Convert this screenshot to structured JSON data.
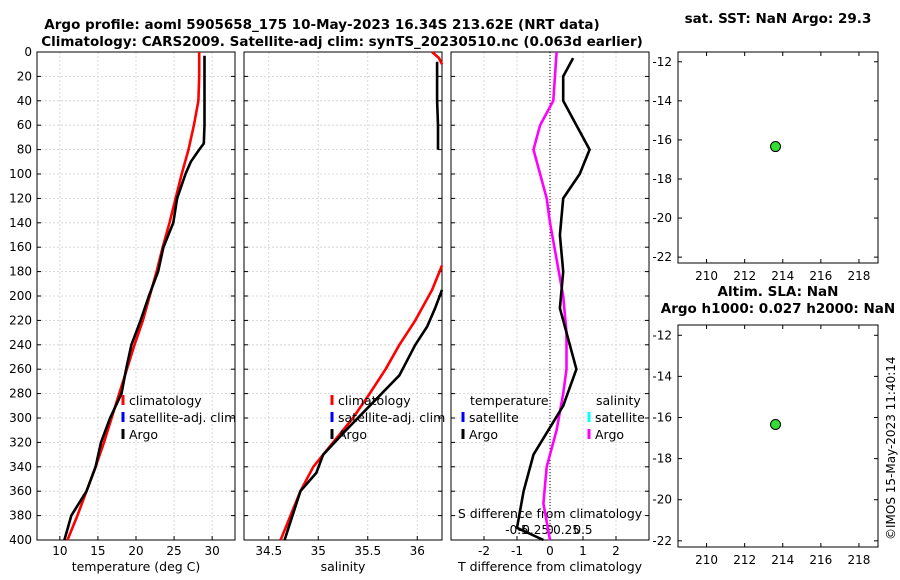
{
  "chart_data": [
    {
      "type": "line",
      "panel": "temperature",
      "title_line1": "Argo profile: aoml 5905658_175 10-May-2023 16.34S 213.62E (NRT data)",
      "title_line2": "Climatology: CARS2009. Satellite-adj clim: synTS_20230510.nc (0.063d earlier)",
      "xlabel": "temperature (deg C)",
      "xlim": [
        7,
        33
      ],
      "xticks": [
        10,
        15,
        20,
        25,
        30
      ],
      "xtick_labels": [
        "10",
        "15",
        "20",
        "25",
        "30"
      ],
      "ylim": [
        0,
        400
      ],
      "yticks": [
        0,
        20,
        40,
        60,
        80,
        100,
        120,
        140,
        160,
        180,
        200,
        220,
        240,
        260,
        280,
        300,
        320,
        340,
        360,
        380,
        400
      ],
      "ytick_labels": [
        "0",
        "20",
        "40",
        "60",
        "80",
        "100",
        "120",
        "140",
        "160",
        "180",
        "200",
        "220",
        "240",
        "260",
        "280",
        "300",
        "320",
        "340",
        "360",
        "380",
        "400"
      ],
      "legend": [
        "climatology",
        "satellite-adj. clim",
        "Argo"
      ],
      "series": [
        {
          "name": "climatology",
          "color": "#ff0000",
          "points": [
            [
              28.3,
              0
            ],
            [
              28.3,
              20
            ],
            [
              28.2,
              40
            ],
            [
              27.6,
              60
            ],
            [
              26.9,
              80
            ],
            [
              26.0,
              100
            ],
            [
              25.2,
              120
            ],
            [
              24.4,
              140
            ],
            [
              23.5,
              160
            ],
            [
              22.7,
              180
            ],
            [
              21.8,
              200
            ],
            [
              20.9,
              220
            ],
            [
              19.8,
              240
            ],
            [
              18.8,
              260
            ],
            [
              17.8,
              280
            ],
            [
              16.8,
              300
            ],
            [
              15.8,
              320
            ],
            [
              14.7,
              340
            ],
            [
              13.5,
              360
            ],
            [
              12.3,
              380
            ],
            [
              11.0,
              400
            ]
          ]
        },
        {
          "name": "Argo",
          "color": "#000000",
          "points": [
            [
              29.0,
              3
            ],
            [
              29.0,
              20
            ],
            [
              29.0,
              40
            ],
            [
              29.0,
              60
            ],
            [
              28.9,
              75
            ],
            [
              28.3,
              80
            ],
            [
              27.2,
              90
            ],
            [
              26.5,
              100
            ],
            [
              25.4,
              120
            ],
            [
              24.9,
              140
            ],
            [
              23.6,
              160
            ],
            [
              22.9,
              180
            ],
            [
              21.7,
              200
            ],
            [
              20.6,
              220
            ],
            [
              19.4,
              240
            ],
            [
              18.7,
              260
            ],
            [
              18.1,
              280
            ],
            [
              16.6,
              300
            ],
            [
              15.4,
              320
            ],
            [
              14.7,
              340
            ],
            [
              13.5,
              360
            ],
            [
              11.5,
              380
            ],
            [
              10.6,
              400
            ]
          ]
        }
      ]
    },
    {
      "type": "line",
      "panel": "salinity",
      "xlabel": "salinity",
      "xlim": [
        34.25,
        36.25
      ],
      "xticks": [
        34.5,
        35,
        35.5,
        36
      ],
      "xtick_labels": [
        "34.5",
        "35",
        "35.5",
        "36"
      ],
      "ylim": [
        0,
        400
      ],
      "legend": [
        "climatology",
        "satellite-adj. clim",
        "Argo"
      ],
      "series": [
        {
          "name": "climatology",
          "color": "#ff0000",
          "points": [
            [
              36.15,
              0
            ],
            [
              36.22,
              5
            ],
            [
              36.25,
              10
            ]
          ]
        },
        {
          "name": "climatology-deep",
          "color": "#ff0000",
          "points": [
            [
              36.25,
              175
            ],
            [
              36.15,
              195
            ],
            [
              35.98,
              220
            ],
            [
              35.82,
              240
            ],
            [
              35.68,
              260
            ],
            [
              35.52,
              280
            ],
            [
              35.35,
              300
            ],
            [
              35.15,
              320
            ],
            [
              34.95,
              340
            ],
            [
              34.82,
              360
            ],
            [
              34.72,
              380
            ],
            [
              34.62,
              400
            ]
          ]
        },
        {
          "name": "Argo",
          "color": "#000000",
          "points": [
            [
              36.2,
              8
            ],
            [
              36.2,
              40
            ],
            [
              36.21,
              60
            ],
            [
              36.21,
              80
            ]
          ]
        },
        {
          "name": "Argo-deep",
          "color": "#000000",
          "points": [
            [
              36.25,
              195
            ],
            [
              36.18,
              210
            ],
            [
              36.1,
              225
            ],
            [
              35.98,
              240
            ],
            [
              35.82,
              265
            ],
            [
              35.58,
              285
            ],
            [
              35.28,
              310
            ],
            [
              35.05,
              330
            ],
            [
              34.98,
              345
            ],
            [
              34.82,
              360
            ],
            [
              34.72,
              385
            ],
            [
              34.66,
              400
            ]
          ]
        }
      ]
    },
    {
      "type": "line",
      "panel": "difference",
      "xlabel": "T difference from climatology",
      "top_xlabel": "S difference from climatology",
      "xlim": [
        -3,
        3
      ],
      "xticks": [
        -2,
        -1,
        0,
        1,
        2
      ],
      "xtick_labels": [
        "-2",
        "-1",
        "0",
        "1",
        "2"
      ],
      "top_xticks": [
        -1,
        -0.5,
        0,
        0.5,
        1
      ],
      "top_xtick_labels": [
        "-0.5",
        "-0.25",
        "0",
        "0.25",
        "0.5"
      ],
      "ylim": [
        0,
        400
      ],
      "legend_left": [
        "temperature",
        "satellite",
        "Argo"
      ],
      "legend_right": [
        "salinity",
        "satellite",
        "Argo"
      ],
      "series": [
        {
          "name": "salinity Argo",
          "color": "#ff00ff",
          "points": [
            [
              0.2,
              0
            ],
            [
              0.1,
              40
            ],
            [
              -0.3,
              60
            ],
            [
              -0.5,
              80
            ],
            [
              -0.3,
              100
            ],
            [
              -0.1,
              120
            ],
            [
              0.0,
              140
            ],
            [
              0.2,
              170
            ],
            [
              0.4,
              200
            ],
            [
              0.5,
              230
            ],
            [
              0.5,
              260
            ],
            [
              0.4,
              280
            ],
            [
              0.2,
              310
            ],
            [
              -0.1,
              340
            ],
            [
              -0.2,
              370
            ],
            [
              0.0,
              400
            ]
          ]
        },
        {
          "name": "temperature Argo",
          "color": "#000000",
          "points": [
            [
              0.7,
              5
            ],
            [
              0.4,
              20
            ],
            [
              0.4,
              40
            ],
            [
              0.8,
              60
            ],
            [
              1.2,
              80
            ],
            [
              0.9,
              100
            ],
            [
              0.4,
              120
            ],
            [
              0.3,
              150
            ],
            [
              0.4,
              180
            ],
            [
              0.3,
              210
            ],
            [
              0.6,
              240
            ],
            [
              0.8,
              260
            ],
            [
              0.4,
              290
            ],
            [
              -0.5,
              330
            ],
            [
              -0.8,
              360
            ],
            [
              -1.0,
              390
            ],
            [
              -0.2,
              400
            ]
          ]
        }
      ]
    },
    {
      "type": "scatter",
      "panel": "sst-map",
      "title": "sat. SST: NaN Argo: 29.3",
      "xlim": [
        208.5,
        219
      ],
      "ylim": [
        -22.3,
        -11.5
      ],
      "xticks": [
        210,
        212,
        214,
        216,
        218
      ],
      "xtick_labels": [
        "210",
        "212",
        "214",
        "216",
        "218"
      ],
      "yticks": [
        -12,
        -14,
        -16,
        -18,
        -20,
        -22
      ],
      "ytick_labels": [
        "-12",
        "-14",
        "-16",
        "-18",
        "-20",
        "-22"
      ],
      "points": [
        {
          "x": 213.62,
          "y": -16.34,
          "color": "#33dd33"
        }
      ]
    },
    {
      "type": "scatter",
      "panel": "sla-map",
      "title_line1": "Altim. SLA: NaN",
      "title_line2": "Argo h1000: 0.027 h2000: NaN",
      "xlim": [
        208.5,
        219
      ],
      "ylim": [
        -22.3,
        -11.5
      ],
      "xticks": [
        210,
        212,
        214,
        216,
        218
      ],
      "xtick_labels": [
        "210",
        "212",
        "214",
        "216",
        "218"
      ],
      "yticks": [
        -12,
        -14,
        -16,
        -18,
        -20,
        -22
      ],
      "ytick_labels": [
        "-12",
        "-14",
        "-16",
        "-18",
        "-20",
        "-22"
      ],
      "points": [
        {
          "x": 213.62,
          "y": -16.34,
          "color": "#33dd33"
        }
      ]
    }
  ],
  "colors": {
    "climatology": "#ff0000",
    "satellite": "#0000ff",
    "satellite_salinity": "#00ffff",
    "argo": "#000000",
    "argo_salinity": "#ff00ff"
  },
  "watermark": "©IMOS 15-May-2023 11:40:14"
}
